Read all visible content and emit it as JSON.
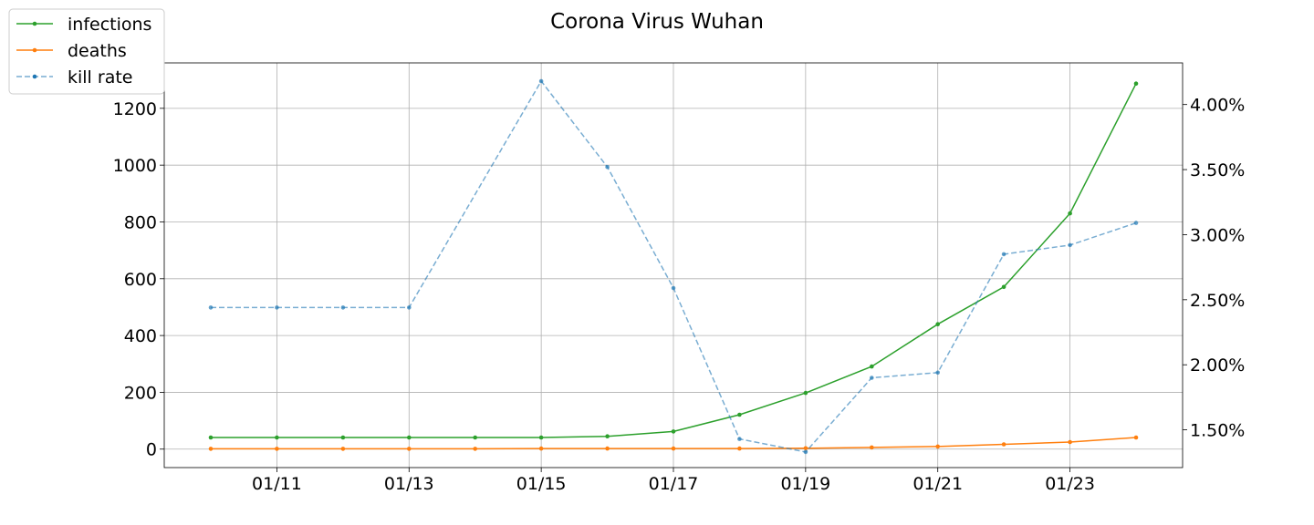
{
  "chart_data": {
    "type": "line",
    "title": "Corona Virus Wuhan",
    "xlabel": "",
    "ylabel": "",
    "y2label": "",
    "x": [
      "01/10",
      "01/11",
      "01/12",
      "01/13",
      "01/14",
      "01/15",
      "01/16",
      "01/17",
      "01/18",
      "01/19",
      "01/20",
      "01/21",
      "01/22",
      "01/23",
      "01/24"
    ],
    "x_tick_labels": [
      "01/11",
      "01/13",
      "01/15",
      "01/17",
      "01/19",
      "01/21",
      "01/23"
    ],
    "y_ticks": [
      0,
      200,
      400,
      600,
      800,
      1000,
      1200
    ],
    "y_tick_labels": [
      "0",
      "200",
      "400",
      "600",
      "800",
      "1000",
      "1200"
    ],
    "y2_ticks": [
      0.015,
      0.02,
      0.025,
      0.03,
      0.035,
      0.04
    ],
    "y2_tick_labels": [
      "1.50%",
      "2.00%",
      "2.50%",
      "3.00%",
      "3.50%",
      "4.00%"
    ],
    "ylim": [
      -65,
      1360
    ],
    "y2lim": [
      0.0121,
      0.0432
    ],
    "grid": true,
    "legend_placement": "top-left",
    "series": [
      {
        "name": "infections",
        "axis": "left",
        "color": "#2ca02c",
        "linestyle": "solid",
        "values": [
          41,
          41,
          41,
          41,
          41,
          41,
          45,
          62,
          121,
          198,
          291,
          440,
          571,
          830,
          1287
        ]
      },
      {
        "name": "deaths",
        "axis": "left",
        "color": "#ff7f0e",
        "linestyle": "solid",
        "values": [
          1,
          1,
          1,
          1,
          1,
          2,
          2,
          2,
          2,
          3,
          6,
          9,
          17,
          25,
          41
        ]
      },
      {
        "name": "kill rate",
        "axis": "right",
        "color": "#1f77b4",
        "linestyle": "dashed",
        "values": [
          0.0244,
          0.0244,
          0.0244,
          0.0244,
          null,
          0.0418,
          0.0352,
          0.0259,
          0.0143,
          0.0133,
          0.019,
          0.0194,
          0.0285,
          0.0292,
          0.0309
        ]
      }
    ]
  }
}
